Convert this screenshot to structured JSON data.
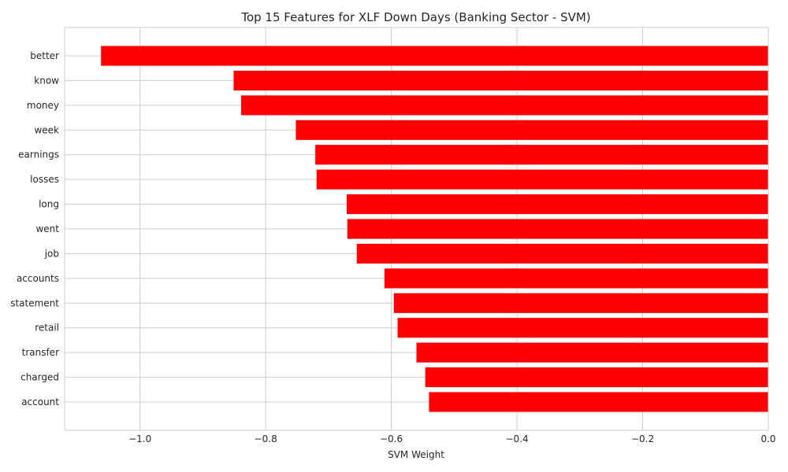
{
  "chart_data": {
    "type": "bar",
    "orientation": "horizontal",
    "title": "Top 15 Features for XLF Down Days (Banking Sector - SVM)",
    "xlabel": "SVM Weight",
    "ylabel": "",
    "xlim": [
      -1.12,
      0.0
    ],
    "xticks": [
      -1.0,
      -0.8,
      -0.6,
      -0.4,
      -0.2,
      0.0
    ],
    "xtick_labels": [
      "−1.0",
      "−0.8",
      "−0.6",
      "−0.4",
      "−0.2",
      "0.0"
    ],
    "grid": true,
    "bar_color": "#ff0000",
    "categories": [
      "better",
      "know",
      "money",
      "week",
      "earnings",
      "losses",
      "long",
      "went",
      "job",
      "accounts",
      "statement",
      "retail",
      "transfer",
      "charged",
      "account"
    ],
    "values": [
      -1.062,
      -0.851,
      -0.839,
      -0.752,
      -0.721,
      -0.719,
      -0.671,
      -0.67,
      -0.655,
      -0.611,
      -0.596,
      -0.59,
      -0.56,
      -0.546,
      -0.54
    ]
  }
}
